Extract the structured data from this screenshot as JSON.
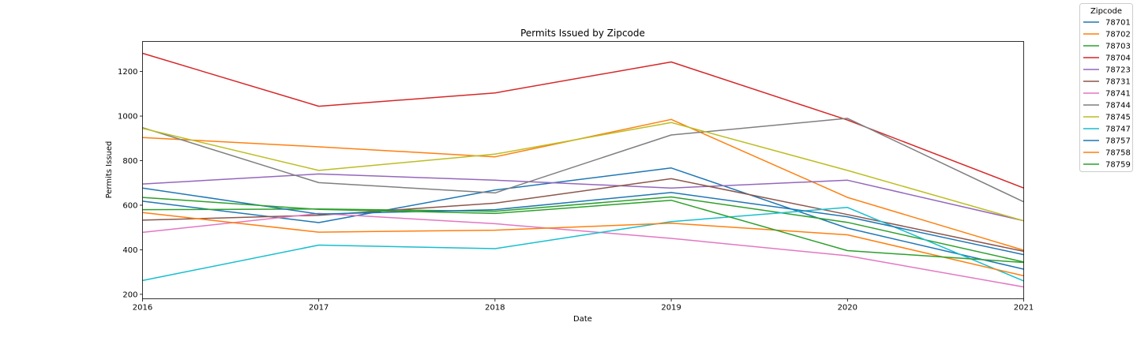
{
  "chart_data": {
    "type": "line",
    "title": "Permits Issued by Zipcode",
    "xlabel": "Date",
    "ylabel": "Permits Issued",
    "x": [
      "2016",
      "2017",
      "2018",
      "2019",
      "2020",
      "2021"
    ],
    "xlim": [
      2016,
      2021
    ],
    "ylim": [
      180,
      1335
    ],
    "yticks": [
      200,
      400,
      600,
      800,
      1000,
      1200
    ],
    "grid": false,
    "legend": {
      "title": "Zipcode",
      "placement": "top-right, outside plot area"
    },
    "series": [
      {
        "name": "78701",
        "color": "#1f77b4",
        "values": [
          618,
          522,
          668,
          767,
          497,
          313
        ]
      },
      {
        "name": "78702",
        "color": "#ff7f0e",
        "values": [
          904,
          862,
          817,
          985,
          635,
          398
        ]
      },
      {
        "name": "78703",
        "color": "#2ca02c",
        "values": [
          580,
          583,
          573,
          637,
          523,
          345
        ]
      },
      {
        "name": "78704",
        "color": "#d62728",
        "values": [
          1282,
          1044,
          1104,
          1243,
          982,
          677
        ]
      },
      {
        "name": "78723",
        "color": "#9467bd",
        "values": [
          695,
          740,
          712,
          677,
          712,
          530
        ]
      },
      {
        "name": "78731",
        "color": "#8c564b",
        "values": [
          533,
          555,
          609,
          719,
          558,
          393
        ]
      },
      {
        "name": "78741",
        "color": "#e377c2",
        "values": [
          478,
          563,
          517,
          451,
          373,
          233
        ]
      },
      {
        "name": "78744",
        "color": "#7f7f7f",
        "values": [
          948,
          701,
          655,
          915,
          990,
          615
        ]
      },
      {
        "name": "78745",
        "color": "#bcbd22",
        "values": [
          945,
          756,
          829,
          971,
          756,
          530
        ]
      },
      {
        "name": "78747",
        "color": "#17becf",
        "values": [
          262,
          421,
          405,
          526,
          590,
          260
        ]
      },
      {
        "name": "78757",
        "color": "#1f77b4",
        "values": [
          677,
          560,
          580,
          657,
          548,
          378
        ]
      },
      {
        "name": "78758",
        "color": "#ff7f0e",
        "values": [
          567,
          479,
          488,
          519,
          467,
          283
        ]
      },
      {
        "name": "78759",
        "color": "#2ca02c",
        "values": [
          635,
          581,
          563,
          622,
          396,
          343
        ]
      }
    ]
  }
}
